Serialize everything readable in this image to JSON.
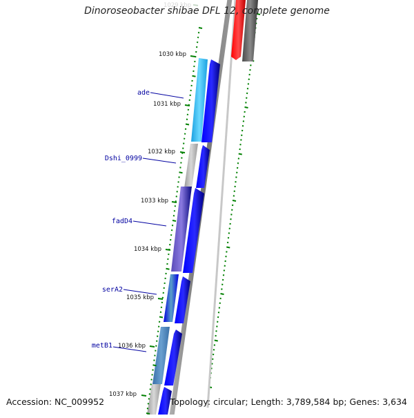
{
  "title": "Dinoroseobacter shibae DFL 12, complete genome",
  "accession": "Accession: NC_009952",
  "topology": "Topology: circular; Length: 3,789,584 bp; Genes: 3,634",
  "ticks": [
    {
      "label": "1029 kbp",
      "faded": true
    },
    {
      "label": "1030 kbp"
    },
    {
      "label": "1031 kbp"
    },
    {
      "label": "1032 kbp"
    },
    {
      "label": "1033 kbp"
    },
    {
      "label": "1034 kbp"
    },
    {
      "label": "1035 kbp"
    },
    {
      "label": "1036 kbp"
    },
    {
      "label": "1037 kbp"
    }
  ],
  "gene_labels": [
    "ade",
    "Dshi_0999",
    "fadD4",
    "serA2",
    "metB1"
  ],
  "colors": {
    "backbone": "#8a8a8a",
    "forward_gene": "#0000ff",
    "ade": "#2ab4ea",
    "gray_gene": "#b4b4b4",
    "fadD4": "#6a5acd",
    "serA2": "#4a8ab0",
    "metB1": "#4682b4",
    "red_gene": "#ff0000",
    "dark_gene": "#555555",
    "tick": "#008000",
    "label": "#0000a0"
  }
}
